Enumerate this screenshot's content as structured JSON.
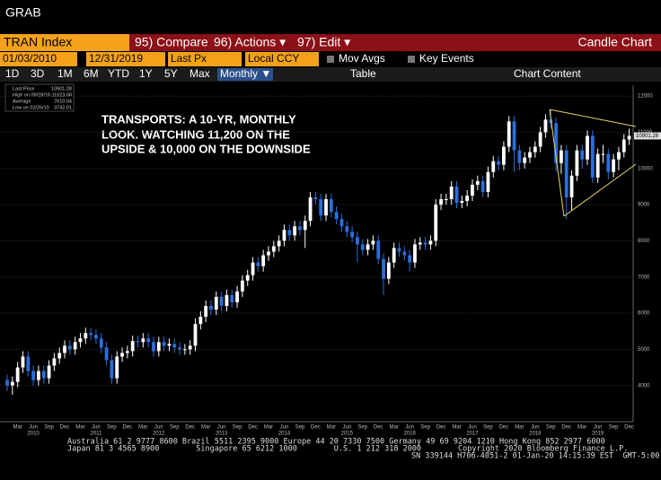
{
  "ui": {
    "app_title": "GRAB",
    "ticker": "TRAN Index",
    "compare": "95) Compare",
    "actions": "96) Actions ▾",
    "edit": "97) Edit ▾",
    "chart_kind": "Candle Chart",
    "start_date": "01/03/2010",
    "end_date": "12/31/2019",
    "field": "Last Px",
    "currency": "Local CCY",
    "mov_avgs": "Mov Avgs",
    "key_events": "Key Events",
    "tabs": [
      "1D",
      "3D",
      "1M",
      "6M",
      "YTD",
      "1Y",
      "5Y",
      "Max"
    ],
    "period": "Monthly ▼",
    "table": "Table",
    "chart_content": "Chart Content",
    "legend": [
      [
        "Last Price",
        "10901.28"
      ],
      [
        "High on 09/28/18",
        "11623.58"
      ],
      [
        "Average",
        "7610.04"
      ],
      [
        "Low on 02/26/10",
        "3742.01"
      ]
    ],
    "annotation": [
      "TRANSPORTS: A 10-YR, MONTHLY",
      "LOOK.  WATCHING 11,200 ON THE",
      "UPSIDE & 10,000 ON THE DOWNSIDE"
    ],
    "footer": [
      "Australia 61 2 9777 8600 Brazil 5511 2395 9000 Europe 44 20 7330 7500 Germany 49 69 9204 1210 Hong Kong 852 2977 6000",
      "Japan 81 3 4565 8900        Singapore 65 6212 1000        U.S. 1 212 318 2000        Copyright 2020 Bloomberg Finance L.P.",
      "SN 339144 H706-4051-2 01-Jan-20 14:15:39 EST  GMT-5:00"
    ]
  },
  "chart_data": {
    "type": "candlestick",
    "up_color": "#ffffff",
    "down_color": "#2a6fdb",
    "last_price_label": "10901.28",
    "categories": [
      null,
      null,
      "Mar",
      null,
      null,
      "Jun",
      null,
      null,
      "Sep",
      null,
      null,
      "Dec",
      null,
      null,
      "Mar",
      null,
      null,
      "Jun",
      null,
      null,
      "Sep",
      null,
      null,
      "Dec",
      null,
      null,
      "Mar",
      null,
      null,
      "Jun",
      null,
      null,
      "Sep",
      null,
      null,
      "Dec",
      null,
      null,
      "Mar",
      null,
      null,
      "Jun",
      null,
      null,
      "Sep",
      null,
      null,
      "Dec",
      null,
      null,
      "Mar",
      null,
      null,
      "Jun",
      null,
      null,
      "Sep",
      null,
      null,
      "Dec",
      null,
      null,
      "Mar",
      null,
      null,
      "Jun",
      null,
      null,
      "Sep",
      null,
      null,
      "Dec",
      null,
      null,
      "Mar",
      null,
      null,
      "Jun",
      null,
      null,
      "Sep",
      null,
      null,
      "Dec",
      null,
      null,
      "Mar",
      null,
      null,
      "Jun",
      null,
      null,
      "Sep",
      null,
      null,
      "Dec",
      null,
      null,
      "Mar",
      null,
      null,
      "Jun",
      null,
      null,
      "Sep",
      null,
      null,
      "Dec",
      null,
      null,
      "Mar",
      null,
      null,
      "Jun",
      null,
      null,
      "Sep",
      null,
      null,
      "Dec"
    ],
    "year_labels": [
      "2010",
      "2011",
      "2012",
      "2013",
      "2014",
      "2015",
      "2016",
      "2017",
      "2018",
      "2019"
    ],
    "open": [
      4150,
      4000,
      4100,
      4500,
      4800,
      4400,
      4150,
      4400,
      4200,
      4550,
      4750,
      4900,
      5100,
      5000,
      5200,
      5300,
      5450,
      5400,
      5300,
      5050,
      4700,
      4200,
      4800,
      4900,
      4950,
      5230,
      5200,
      5300,
      5200,
      4950,
      5200,
      5100,
      5150,
      5050,
      5000,
      5000,
      5100,
      5700,
      5900,
      6200,
      6100,
      6450,
      6200,
      6500,
      6300,
      6600,
      6900,
      7050,
      7400,
      7300,
      7600,
      7700,
      7850,
      8000,
      8300,
      8150,
      8400,
      8300,
      8550,
      9200,
      9150,
      8700,
      9150,
      8800,
      8600,
      8400,
      8250,
      8100,
      7900,
      7750,
      7900,
      8000,
      7500,
      6950,
      7400,
      7800,
      7700,
      7600,
      7400,
      7900,
      7950,
      7900,
      8000,
      9000,
      9150,
      9150,
      9500,
      9050,
      9100,
      9250,
      9550,
      9650,
      9350,
      9900,
      10200,
      10100,
      10600,
      11300,
      10500,
      10150,
      10300,
      10450,
      10600,
      11000,
      11350,
      11250,
      10150,
      10500,
      9200,
      9800,
      10500,
      10250,
      10900,
      9750,
      10400,
      10400,
      9900,
      10250,
      10450,
      10800
    ],
    "high": [
      4300,
      4250,
      4650,
      4950,
      4950,
      4550,
      4550,
      4550,
      4700,
      4900,
      5050,
      5250,
      5250,
      5350,
      5450,
      5600,
      5600,
      5550,
      5450,
      5200,
      4850,
      4950,
      5050,
      5100,
      5380,
      5380,
      5450,
      5450,
      5350,
      5350,
      5350,
      5300,
      5300,
      5200,
      5150,
      5250,
      5850,
      6050,
      6350,
      6350,
      6600,
      6600,
      6650,
      6650,
      6750,
      7050,
      7200,
      7550,
      7550,
      7750,
      7850,
      8000,
      8150,
      8450,
      8450,
      8550,
      8550,
      8700,
      9350,
      9350,
      9300,
      9300,
      9300,
      8950,
      8750,
      8550,
      8400,
      8250,
      8050,
      8050,
      8150,
      8150,
      7650,
      7550,
      7950,
      7950,
      7850,
      7750,
      8050,
      8100,
      8100,
      8150,
      9150,
      9300,
      9300,
      9650,
      9650,
      9250,
      9400,
      9700,
      9800,
      9800,
      10050,
      10350,
      10350,
      10750,
      11450,
      11450,
      10650,
      10450,
      10600,
      10750,
      11150,
      11500,
      11624,
      11400,
      10650,
      10650,
      9950,
      10650,
      10650,
      11050,
      11050,
      10550,
      10650,
      10550,
      10400,
      10600,
      10950,
      11100
    ],
    "low": [
      3850,
      3742,
      3950,
      4350,
      4250,
      4000,
      4000,
      4050,
      4050,
      4400,
      4600,
      4750,
      4850,
      4850,
      5050,
      5150,
      5250,
      5150,
      4900,
      4550,
      4050,
      4050,
      4650,
      4750,
      4800,
      5050,
      5050,
      5050,
      4800,
      4800,
      4950,
      4950,
      4900,
      4850,
      4850,
      4850,
      4950,
      5550,
      5750,
      5950,
      5950,
      6050,
      6050,
      6150,
      6150,
      6450,
      6750,
      6900,
      7150,
      7150,
      7450,
      7550,
      7700,
      7850,
      8000,
      8000,
      8150,
      7800,
      8400,
      9000,
      8550,
      8550,
      8650,
      8450,
      8250,
      8100,
      7950,
      7400,
      7600,
      7600,
      7750,
      7350,
      6500,
      6800,
      7250,
      7550,
      7450,
      7150,
      7250,
      7750,
      7750,
      7750,
      7850,
      8850,
      9000,
      9000,
      8900,
      8900,
      8950,
      9100,
      9400,
      9200,
      9200,
      9750,
      9950,
      9950,
      10450,
      9900,
      9950,
      10000,
      10150,
      10300,
      10450,
      10850,
      11100,
      9900,
      9850,
      8600,
      8850,
      9650,
      10000,
      10100,
      9600,
      9600,
      10150,
      9700,
      9750,
      9950,
      10300,
      10650
    ],
    "close": [
      4000,
      4100,
      4500,
      4800,
      4400,
      4150,
      4400,
      4200,
      4550,
      4750,
      4900,
      5100,
      5000,
      5200,
      5300,
      5450,
      5400,
      5300,
      5050,
      4700,
      4200,
      4800,
      4900,
      4950,
      5230,
      5200,
      5300,
      5200,
      4950,
      5200,
      5100,
      5150,
      5050,
      5000,
      5000,
      5100,
      5700,
      5900,
      6200,
      6100,
      6450,
      6200,
      6500,
      6300,
      6600,
      6900,
      7050,
      7400,
      7300,
      7600,
      7700,
      7850,
      8000,
      8300,
      8150,
      8400,
      8300,
      8550,
      9200,
      9150,
      8700,
      9150,
      8800,
      8600,
      8400,
      8250,
      8100,
      7900,
      7750,
      7900,
      8000,
      7500,
      6950,
      7400,
      7800,
      7700,
      7600,
      7400,
      7900,
      7950,
      7900,
      8000,
      9000,
      9150,
      9150,
      9500,
      9050,
      9100,
      9250,
      9550,
      9650,
      9350,
      9900,
      10200,
      10100,
      10600,
      11300,
      10500,
      10150,
      10300,
      10450,
      10600,
      11000,
      11350,
      11250,
      10150,
      10500,
      9200,
      9800,
      10500,
      10250,
      10900,
      9750,
      10400,
      10400,
      9900,
      10250,
      10450,
      10800,
      10900
    ],
    "ylim": [
      3000,
      12300
    ],
    "yticks": [
      4000,
      5000,
      6000,
      7000,
      8000,
      9000,
      10000,
      11000,
      12000
    ]
  }
}
